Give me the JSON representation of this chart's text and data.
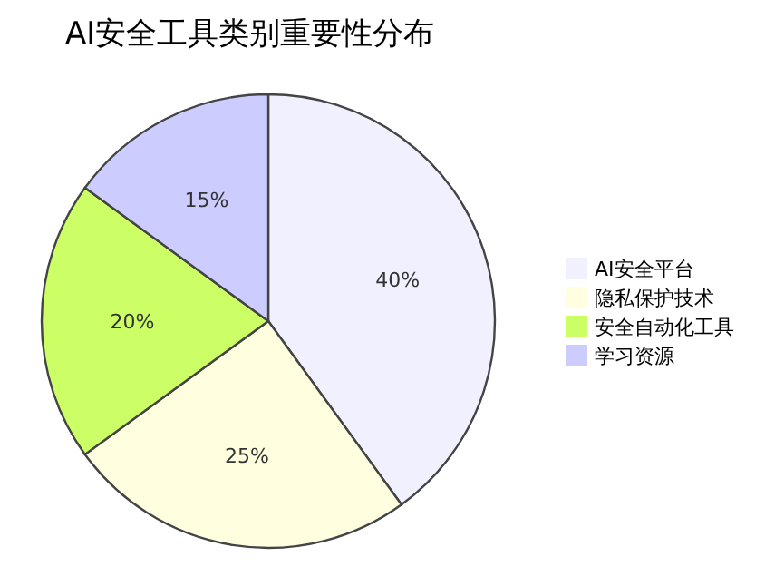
{
  "chart_data": {
    "type": "pie",
    "title": "AI安全工具类别重要性分布",
    "categories": [
      "AI安全平台",
      "隐私保护技术",
      "安全自动化工具",
      "学习资源"
    ],
    "values": [
      40,
      25,
      20,
      15
    ],
    "colors": [
      "#f0f0ff",
      "#ffffe0",
      "#ccff66",
      "#ccccff"
    ],
    "value_labels": [
      "40%",
      "25%",
      "20%",
      "15%"
    ],
    "legend": "right"
  }
}
